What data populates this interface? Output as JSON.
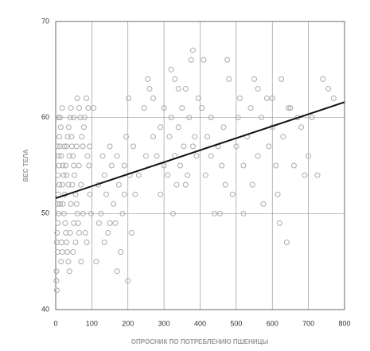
{
  "chart_data": {
    "type": "scatter",
    "xlabel": "ОПРОСНИК ПО ПОТРЕБЛЕНИЮ ПШЕНИЦЫ",
    "ylabel": "ВЕС ТЕЛА",
    "xlim": [
      0,
      800
    ],
    "ylim": [
      40,
      70
    ],
    "xticks": [
      0,
      100,
      200,
      300,
      400,
      500,
      600,
      700,
      800
    ],
    "yticks": [
      40,
      50,
      60,
      70
    ],
    "grid": true,
    "series": [
      {
        "color": "#aaaaaa",
        "x": [
          2,
          2,
          3,
          5,
          3,
          4,
          6,
          8,
          5,
          7,
          10,
          6,
          9,
          8,
          12,
          10,
          14,
          12,
          18,
          15,
          20,
          22,
          18,
          25,
          20,
          23,
          26,
          28,
          30,
          32,
          35,
          30,
          33,
          36,
          40,
          42,
          45,
          48,
          50,
          52,
          46,
          55,
          58,
          60,
          62,
          65,
          55,
          48,
          70,
          38,
          75,
          72,
          78,
          80,
          85,
          90,
          88,
          92,
          95,
          98,
          60,
          65,
          68,
          15,
          18,
          40,
          50,
          35,
          28,
          44,
          5,
          8,
          12,
          16,
          24,
          30,
          38,
          42,
          50,
          58,
          64,
          70,
          76,
          82,
          86,
          94,
          105,
          112,
          118,
          125,
          130,
          135,
          140,
          145,
          150,
          155,
          160,
          165,
          170,
          175,
          180,
          185,
          190,
          195,
          200,
          202,
          205,
          210,
          215,
          220,
          135,
          150,
          170,
          120,
          190,
          230,
          245,
          255,
          260,
          270,
          280,
          290,
          300,
          310,
          315,
          320,
          325,
          330,
          335,
          340,
          345,
          350,
          355,
          360,
          365,
          370,
          375,
          380,
          385,
          390,
          395,
          300,
          320,
          340,
          360,
          380,
          250,
          270,
          290,
          330,
          405,
          410,
          415,
          420,
          430,
          440,
          450,
          460,
          465,
          470,
          475,
          480,
          490,
          500,
          505,
          510,
          520,
          530,
          540,
          545,
          550,
          560,
          570,
          575,
          585,
          590,
          600,
          610,
          615,
          625,
          630,
          640,
          650,
          660,
          670,
          680,
          690,
          700,
          710,
          725,
          740,
          755,
          770,
          430,
          455,
          520,
          560,
          600,
          620,
          645
        ],
        "values": [
          44,
          43,
          42,
          46,
          47,
          48,
          49,
          50,
          51,
          52,
          53,
          54,
          55,
          56,
          57,
          58,
          59,
          60,
          61,
          56,
          55,
          54,
          53,
          52,
          51,
          50,
          49,
          48,
          47,
          46,
          45,
          57,
          58,
          59,
          60,
          61,
          57,
          56,
          55,
          54,
          53,
          52,
          51,
          50,
          49,
          48,
          47,
          46,
          45,
          44,
          57,
          58,
          59,
          60,
          62,
          61,
          56,
          55,
          52,
          50,
          62,
          61,
          60,
          45,
          46,
          48,
          49,
          53,
          55,
          58,
          57,
          60,
          51,
          47,
          57,
          54,
          56,
          51,
          60,
          57,
          55,
          53,
          50,
          48,
          47,
          57,
          61,
          45,
          53,
          50,
          56,
          54,
          52,
          48,
          57,
          55,
          51,
          49,
          56,
          53,
          46,
          50,
          55,
          58,
          43,
          62,
          54,
          48,
          57,
          52,
          47,
          49,
          44,
          49,
          52,
          54,
          61,
          64,
          63,
          58,
          56,
          52,
          61,
          54,
          58,
          65,
          50,
          56,
          53,
          59,
          55,
          61,
          57,
          63,
          54,
          60,
          66,
          67,
          58,
          56,
          62,
          55,
          60,
          63,
          53,
          57,
          56,
          62,
          59,
          64,
          61,
          66,
          54,
          58,
          60,
          50,
          57,
          55,
          59,
          53,
          66,
          64,
          52,
          57,
          60,
          62,
          55,
          58,
          61,
          53,
          64,
          56,
          60,
          51,
          62,
          57,
          59,
          55,
          52,
          64,
          58,
          47,
          61,
          55,
          60,
          59,
          54,
          56,
          60,
          54,
          64,
          63,
          62,
          56,
          50,
          50,
          63,
          62,
          49,
          61
        ]
      },
      {
        "type": "line",
        "color": "#111111",
        "x": [
          0,
          800
        ],
        "values": [
          51.6,
          61.6
        ]
      }
    ]
  }
}
